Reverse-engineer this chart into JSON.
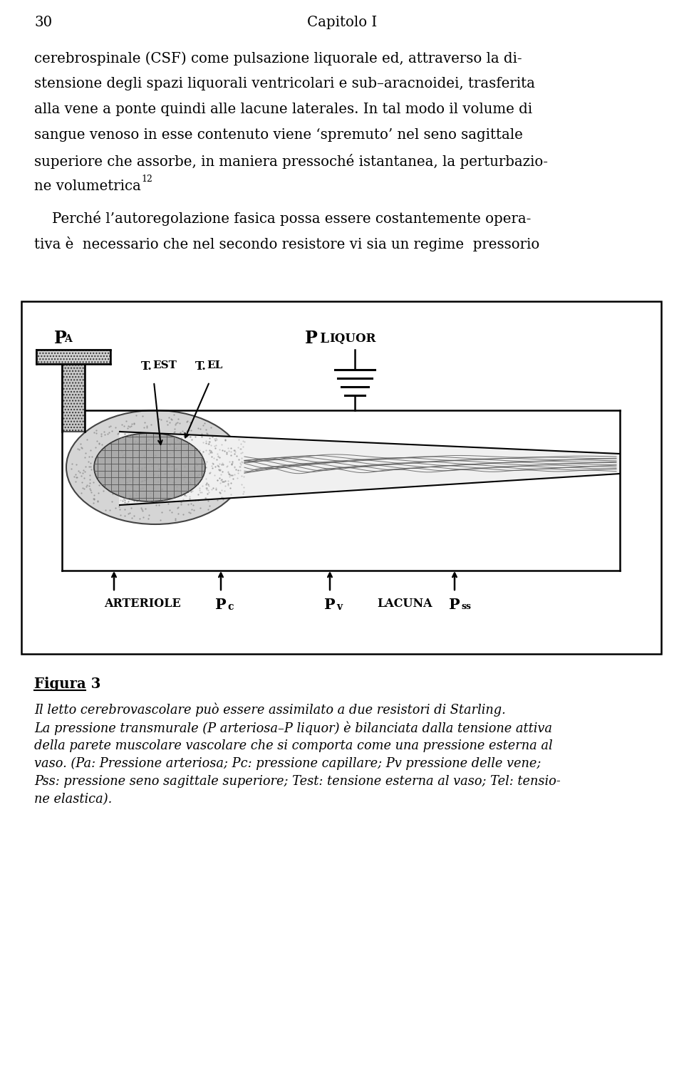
{
  "page_number": "30",
  "chapter_title": "Capitolo I",
  "para1_lines": [
    "cerebrospinale (CSF) come pulsazione liquorale ed, attraverso la di-",
    "stensione degli spazi liquorali ventricolari e sub–aracnoidei, trasferita",
    "alla vene a ponte quindi alle lacune laterales. In tal modo il volume di",
    "sangue venoso in esse contenuto viene ‘spremuto’ nel seno sagittale",
    "superiore che assorbe, in maniera pressoché istantanea, la perturbazio-",
    "ne volumetrica"
  ],
  "superscript": "12",
  "para2_lines": [
    "    Perché l’autoregolazione fasica possa essere costantemente opera-",
    "tiva è  necessario che nel secondo resistore vi sia un regime  pressorio"
  ],
  "figura_label": "Figura 3",
  "figura_caption1": "Il letto cerebrovascolare può essere assimilato a due resistori di Starling.",
  "figura_caption2_lines": [
    "La pressione transmurale (P arteriosa–P liquor) è bilanciata dalla tensione attiva",
    "della parete muscolare vascolare che si comporta come una pressione esterna al",
    "vaso. (Pa: Pressione arteriosa; Pc: pressione capillare; Pv pressione delle vene;",
    "Pss: pressione seno sagittale superiore; Test: tensione esterna al vaso; Tel: tensio-",
    "ne elastica)."
  ],
  "bg_color": "#ffffff",
  "text_color": "#000000"
}
